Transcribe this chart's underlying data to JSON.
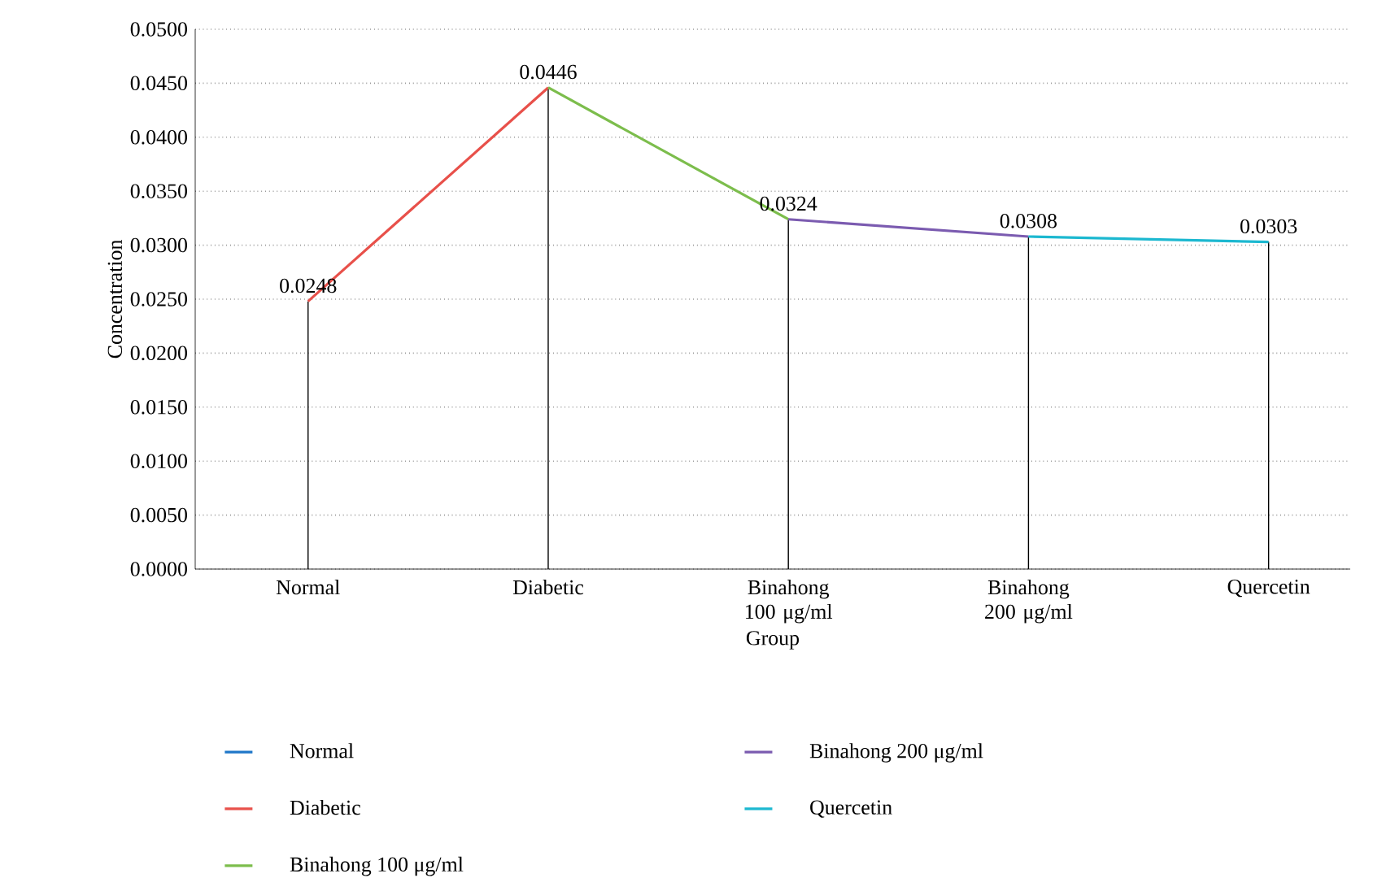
{
  "chart_data": {
    "type": "line",
    "xlabel": "Group",
    "ylabel": "Concentration",
    "categories": [
      "Normal",
      "Diabetic",
      "Binahong 100 μg/ml",
      "Binahong 200 μg/ml",
      "Quercetin"
    ],
    "series": [
      {
        "name": "Normal",
        "color": "#1f77c8",
        "values": [
          null,
          null,
          null,
          null,
          null
        ]
      },
      {
        "name": "Diabetic",
        "color": "#e8504a",
        "values": [
          0.0248,
          0.0446,
          null,
          null,
          null
        ]
      },
      {
        "name": "Binahong 100 μg/ml",
        "color": "#7cbd4c",
        "values": [
          null,
          0.0446,
          0.0324,
          null,
          null
        ]
      },
      {
        "name": "Binahong 200 μg/ml",
        "color": "#7b5bb0",
        "values": [
          null,
          null,
          0.0324,
          0.0308,
          null
        ]
      },
      {
        "name": "Quercetin",
        "color": "#1cb8d0",
        "values": [
          null,
          null,
          null,
          0.0308,
          0.0303
        ]
      },
      {
        "type": "bar",
        "color": "#000000",
        "values": [
          0.0248,
          0.0446,
          0.0324,
          0.0308,
          0.0303
        ],
        "value_labels": [
          "0.0248",
          "0.0446",
          "0.0324",
          "0.0308",
          "0.0303"
        ]
      }
    ],
    "ylim": [
      0,
      0.05
    ],
    "yticks": [
      {
        "value": 0,
        "label": "0.0000"
      },
      {
        "value": 0.005,
        "label": "0.0050"
      },
      {
        "value": 0.01,
        "label": "0.0100"
      },
      {
        "value": 0.015,
        "label": "0.0150"
      },
      {
        "value": 0.02,
        "label": "0.0200"
      },
      {
        "value": 0.025,
        "label": "0.0250"
      },
      {
        "value": 0.03,
        "label": "0.0300"
      },
      {
        "value": 0.035,
        "label": "0.0350"
      },
      {
        "value": 0.04,
        "label": "0.0400"
      },
      {
        "value": 0.045,
        "label": "0.0450"
      },
      {
        "value": 0.05,
        "label": "0.0500"
      }
    ],
    "grid": "y",
    "legend": "bottom",
    "line_style": "solid",
    "marker": "none"
  }
}
